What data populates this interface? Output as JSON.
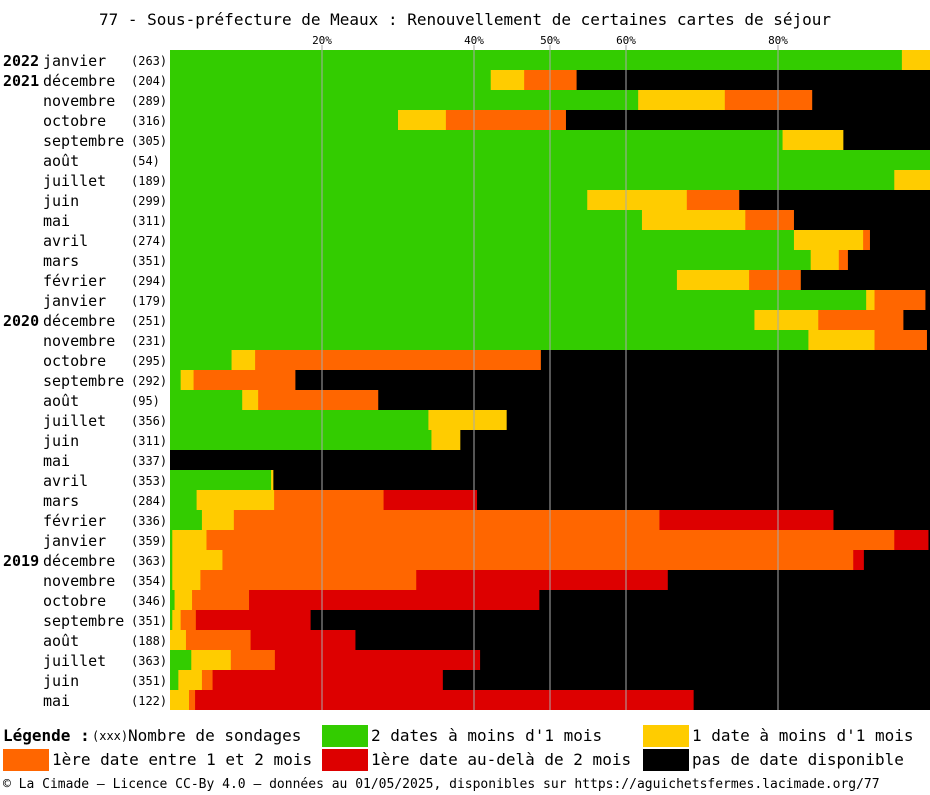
{
  "chart_data": {
    "type": "bar",
    "stacked": true,
    "orientation": "horizontal",
    "title": "77 - Sous-préfecture de Meaux : Renouvellement de certaines cartes de séjour",
    "x_unit": "%",
    "xlim": [
      0,
      100
    ],
    "ticks": [
      {
        "value": 20,
        "label": "20%"
      },
      {
        "value": 40,
        "label": "40%"
      },
      {
        "value": 50,
        "label": "50%"
      },
      {
        "value": 60,
        "label": "60%"
      },
      {
        "value": 80,
        "label": "80%"
      }
    ],
    "series": [
      {
        "name": "2 dates à moins d'1 mois",
        "color": "#33cc00"
      },
      {
        "name": "1 date à moins d'1 mois",
        "color": "#ffcc00"
      },
      {
        "name": "1ère date entre 1 et 2 mois",
        "color": "#ff6600"
      },
      {
        "name": "1ère date au-delà de 2 mois",
        "color": "#dd0000"
      },
      {
        "name": "pas de date disponible",
        "color": "#000000"
      }
    ],
    "rows": [
      {
        "year": "2022",
        "month": "janvier",
        "count": "(263)",
        "values": [
          96.3,
          3.7,
          0,
          0,
          0
        ]
      },
      {
        "year": "2021",
        "month": "décembre",
        "count": "(204)",
        "values": [
          42.2,
          4.4,
          6.9,
          0,
          46.5
        ]
      },
      {
        "year": "",
        "month": "novembre",
        "count": "(289)",
        "values": [
          61.6,
          11.4,
          11.5,
          0,
          15.5
        ]
      },
      {
        "year": "",
        "month": "octobre",
        "count": "(316)",
        "values": [
          30.0,
          6.3,
          15.8,
          0,
          47.9
        ]
      },
      {
        "year": "",
        "month": "septembre",
        "count": "(305)",
        "values": [
          80.6,
          8.0,
          0,
          0,
          11.4
        ]
      },
      {
        "year": "",
        "month": "août",
        "count": "(54)",
        "values": [
          100,
          0,
          0,
          0,
          0
        ]
      },
      {
        "year": "",
        "month": "juillet",
        "count": "(189)",
        "values": [
          95.3,
          4.7,
          0,
          0,
          0
        ]
      },
      {
        "year": "",
        "month": "juin",
        "count": "(299)",
        "values": [
          54.9,
          13.1,
          6.9,
          0,
          25.1
        ]
      },
      {
        "year": "",
        "month": "mai",
        "count": "(311)",
        "values": [
          62.1,
          13.6,
          6.4,
          0,
          17.9
        ]
      },
      {
        "year": "",
        "month": "avril",
        "count": "(274)",
        "values": [
          82.1,
          9.1,
          0.9,
          0,
          7.9
        ]
      },
      {
        "year": "",
        "month": "mars",
        "count": "(351)",
        "values": [
          84.3,
          3.7,
          1.2,
          0,
          10.8
        ]
      },
      {
        "year": "",
        "month": "février",
        "count": "(294)",
        "values": [
          66.7,
          9.5,
          6.8,
          0,
          17.0
        ]
      },
      {
        "year": "",
        "month": "janvier",
        "count": "(179)",
        "values": [
          91.6,
          1.1,
          6.7,
          0,
          0.6
        ]
      },
      {
        "year": "2020",
        "month": "décembre",
        "count": "(251)",
        "values": [
          76.9,
          8.4,
          11.2,
          0,
          3.5
        ]
      },
      {
        "year": "",
        "month": "novembre",
        "count": "(231)",
        "values": [
          84.0,
          8.7,
          6.9,
          0,
          0.4
        ]
      },
      {
        "year": "",
        "month": "octobre",
        "count": "(295)",
        "values": [
          8.1,
          3.1,
          37.6,
          0,
          51.2
        ]
      },
      {
        "year": "",
        "month": "septembre",
        "count": "(292)",
        "values": [
          1.4,
          1.7,
          13.4,
          0,
          83.5
        ]
      },
      {
        "year": "",
        "month": "août",
        "count": "(95)",
        "values": [
          9.5,
          2.1,
          15.8,
          0,
          72.6
        ]
      },
      {
        "year": "",
        "month": "juillet",
        "count": "(356)",
        "values": [
          34.0,
          10.3,
          0,
          0,
          55.7
        ]
      },
      {
        "year": "",
        "month": "juin",
        "count": "(311)",
        "values": [
          34.4,
          3.8,
          0,
          0,
          61.8
        ]
      },
      {
        "year": "",
        "month": "mai",
        "count": "(337)",
        "values": [
          0,
          0,
          0,
          0,
          100
        ]
      },
      {
        "year": "",
        "month": "avril",
        "count": "(353)",
        "values": [
          13.3,
          0.3,
          0,
          0,
          86.4
        ]
      },
      {
        "year": "",
        "month": "mars",
        "count": "(284)",
        "values": [
          3.5,
          10.2,
          14.4,
          12.3,
          59.6
        ]
      },
      {
        "year": "",
        "month": "février",
        "count": "(336)",
        "values": [
          4.2,
          4.2,
          56.0,
          22.9,
          12.7
        ]
      },
      {
        "year": "",
        "month": "janvier",
        "count": "(359)",
        "values": [
          0.3,
          4.5,
          90.5,
          4.5,
          0.2
        ]
      },
      {
        "year": "2019",
        "month": "décembre",
        "count": "(363)",
        "values": [
          0.3,
          6.6,
          83.0,
          1.4,
          8.7
        ]
      },
      {
        "year": "",
        "month": "novembre",
        "count": "(354)",
        "values": [
          0.3,
          3.7,
          28.4,
          33.1,
          34.5
        ]
      },
      {
        "year": "",
        "month": "octobre",
        "count": "(346)",
        "values": [
          0.6,
          2.3,
          7.5,
          38.2,
          51.4
        ]
      },
      {
        "year": "",
        "month": "septembre",
        "count": "(351)",
        "values": [
          0.3,
          1.1,
          2.0,
          15.1,
          81.5
        ]
      },
      {
        "year": "",
        "month": "août",
        "count": "(188)",
        "values": [
          0,
          2.1,
          8.5,
          13.8,
          75.6
        ]
      },
      {
        "year": "",
        "month": "juillet",
        "count": "(363)",
        "values": [
          2.8,
          5.2,
          5.8,
          27.0,
          59.2
        ]
      },
      {
        "year": "",
        "month": "juin",
        "count": "(351)",
        "values": [
          1.1,
          3.1,
          1.4,
          30.3,
          64.1
        ]
      },
      {
        "year": "",
        "month": "mai",
        "count": "(122)",
        "values": [
          0,
          2.5,
          0.8,
          65.6,
          31.1
        ]
      }
    ]
  },
  "legend": {
    "title": "Légende :",
    "count_key": "(xxx)",
    "count_label": "Nombre de sondages"
  },
  "footer": "© La Cimade — Licence CC-By 4.0 — données au 01/05/2025, disponibles sur https://aguichetsfermes.lacimade.org/77"
}
